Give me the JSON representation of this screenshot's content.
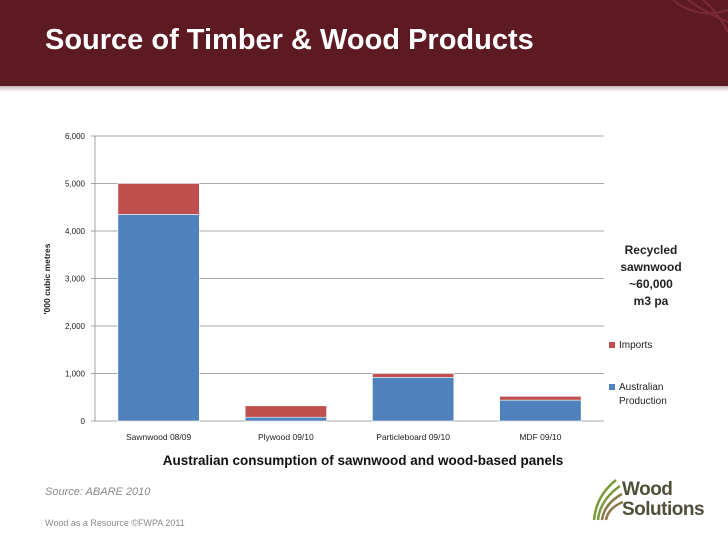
{
  "slide": {
    "title": "Source of Timber & Wood Products",
    "source": "Source: ABARE 2010",
    "footer": "Wood as a Resource ©FWPA 2011",
    "annotation": "Recycled\nsawnwood\n~60,000\nm3 pa",
    "logo_line1": "Wood",
    "logo_line2": "Solutions",
    "logo_icon": "wood-solutions-leaf-icon"
  },
  "colors": {
    "header": "#5e1a22",
    "australian_production": "#4f81bd",
    "imports": "#c0504d"
  },
  "chart_data": {
    "type": "bar",
    "stacked": true,
    "categories": [
      "Sawnwood 08/09",
      "Plywood 09/10",
      "Particleboard 09/10",
      "MDF 09/10"
    ],
    "series": [
      {
        "name": "Australian Production",
        "values": [
          4350,
          80,
          920,
          440
        ]
      },
      {
        "name": "Imports",
        "values": [
          650,
          240,
          80,
          80
        ]
      }
    ],
    "xlabel": "Australian consumption of sawnwood and wood-based panels",
    "ylabel": "'000 cubic metres",
    "ylim": [
      0,
      6000
    ],
    "yticks": [
      "0",
      "1,000",
      "2,000",
      "3,000",
      "4,000",
      "5,000",
      "6,000"
    ],
    "grid": true,
    "legend": "right"
  }
}
